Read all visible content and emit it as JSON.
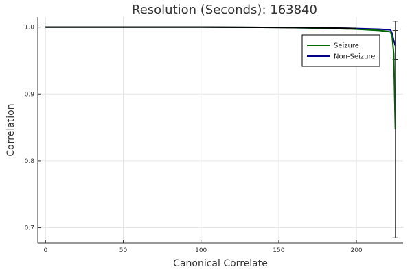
{
  "chart_data": {
    "type": "line",
    "title": "Resolution (Seconds): 163840",
    "xlabel": "Canonical Correlate",
    "ylabel": "Correlation",
    "xlim": [
      -5,
      230
    ],
    "ylim": [
      0.677,
      1.015
    ],
    "xticks": [
      0,
      50,
      100,
      150,
      200
    ],
    "yticks": [
      0.7,
      0.8,
      0.9,
      1.0
    ],
    "xtick_labels": [
      "0",
      "50",
      "100",
      "150",
      "200"
    ],
    "ytick_labels": [
      "0.7",
      "0.8",
      "0.9",
      "1.0"
    ],
    "grid": true,
    "legend_position": "top-right",
    "series": [
      {
        "name": "Seizure",
        "color": "#006400",
        "x": [
          0,
          50,
          100,
          150,
          175,
          200,
          215,
          222,
          223,
          224,
          225
        ],
        "y": [
          1.0,
          1.0,
          1.0,
          0.9995,
          0.9985,
          0.997,
          0.995,
          0.993,
          0.985,
          0.96,
          0.847
        ],
        "error_bar": {
          "x": 225,
          "low": 0.685,
          "high": 0.995
        }
      },
      {
        "name": "Non-Seizure",
        "color": "#00008b",
        "x": [
          0,
          50,
          100,
          150,
          175,
          200,
          215,
          222,
          223,
          224,
          225
        ],
        "y": [
          1.0,
          1.0,
          1.0,
          0.9995,
          0.999,
          0.998,
          0.997,
          0.996,
          0.99,
          0.98,
          0.972
        ],
        "error_bar": {
          "x": 225,
          "low": 0.952,
          "high": 1.009
        }
      }
    ]
  }
}
